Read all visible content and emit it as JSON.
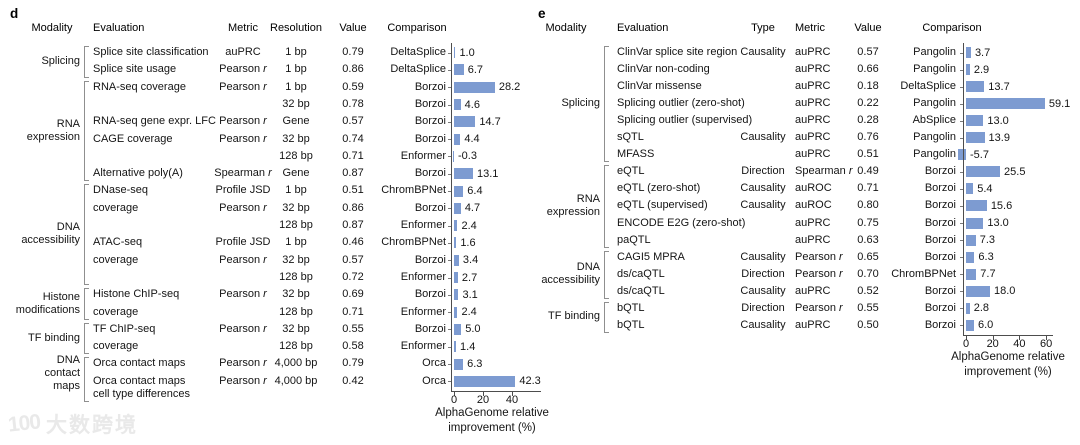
{
  "colors": {
    "bar": "#7d9bd1",
    "axis": "#4d4d4d",
    "bracket": "#8f8f8f",
    "text": "#141414",
    "watermark": "#e9e9e9"
  },
  "watermark": {
    "logo_text": "100",
    "text": "大数跨境"
  },
  "panels": [
    {
      "label": "d",
      "headers": [
        "Modality",
        "Evaluation",
        "Metric",
        "Resolution",
        "Value",
        "Comparison"
      ],
      "groups": [
        {
          "label_lines": [
            "Splicing"
          ],
          "start": 0,
          "end": 1
        },
        {
          "label_lines": [
            "RNA",
            "expression"
          ],
          "start": 2,
          "end": 7
        },
        {
          "label_lines": [
            "DNA",
            "accessibility"
          ],
          "start": 8,
          "end": 13
        },
        {
          "label_lines": [
            "Histone",
            "modifications"
          ],
          "start": 14,
          "end": 15
        },
        {
          "label_lines": [
            "TF binding"
          ],
          "start": 16,
          "end": 17
        },
        {
          "label_lines": [
            "DNA",
            "contact",
            "maps"
          ],
          "start": 18,
          "end": 19,
          "extend": 13
        }
      ],
      "rows": [
        {
          "evaluation": "Splice site classification",
          "metric": "auPRC",
          "resolution": "1 bp",
          "value": "0.79",
          "comparison": "DeltaSplice",
          "improvement": 1.0
        },
        {
          "evaluation": "Splice site usage",
          "metric": "Pearson r",
          "resolution": "1 bp",
          "value": "0.86",
          "comparison": "DeltaSplice",
          "improvement": 6.7
        },
        {
          "evaluation": "RNA-seq coverage",
          "metric": "Pearson r",
          "resolution": "1 bp",
          "value": "0.59",
          "comparison": "Borzoi",
          "improvement": 28.2
        },
        {
          "evaluation": "",
          "metric": "",
          "resolution": "32 bp",
          "value": "0.78",
          "comparison": "Borzoi",
          "improvement": 4.6
        },
        {
          "evaluation": "RNA-seq gene expr. LFC",
          "metric": "Pearson r",
          "resolution": "Gene",
          "value": "0.57",
          "comparison": "Borzoi",
          "improvement": 14.7
        },
        {
          "evaluation": "CAGE coverage",
          "metric": "Pearson r",
          "resolution": "32 bp",
          "value": "0.74",
          "comparison": "Borzoi",
          "improvement": 4.4
        },
        {
          "evaluation": "",
          "metric": "",
          "resolution": "128 bp",
          "value": "0.71",
          "comparison": "Enformer",
          "improvement": -0.3
        },
        {
          "evaluation": "Alternative poly(A)",
          "metric": "Spearman r",
          "resolution": "Gene",
          "value": "0.87",
          "comparison": "Borzoi",
          "improvement": 13.1
        },
        {
          "evaluation": "DNase-seq",
          "metric": "Profile JSD",
          "resolution": "1 bp",
          "value": "0.51",
          "comparison": "ChromBPNet",
          "improvement": 6.4
        },
        {
          "evaluation": "coverage",
          "metric": "Pearson r",
          "resolution": "32 bp",
          "value": "0.86",
          "comparison": "Borzoi",
          "improvement": 4.7
        },
        {
          "evaluation": "",
          "metric": "",
          "resolution": "128 bp",
          "value": "0.87",
          "comparison": "Enformer",
          "improvement": 2.4
        },
        {
          "evaluation": "ATAC-seq",
          "metric": "Profile JSD",
          "resolution": "1 bp",
          "value": "0.46",
          "comparison": "ChromBPNet",
          "improvement": 1.6
        },
        {
          "evaluation": "coverage",
          "metric": "Pearson r",
          "resolution": "32 bp",
          "value": "0.57",
          "comparison": "Borzoi",
          "improvement": 3.4
        },
        {
          "evaluation": "",
          "metric": "",
          "resolution": "128 bp",
          "value": "0.72",
          "comparison": "Enformer",
          "improvement": 2.7
        },
        {
          "evaluation": "Histone ChIP-seq",
          "metric": "Pearson r",
          "resolution": "32 bp",
          "value": "0.69",
          "comparison": "Borzoi",
          "improvement": 3.1
        },
        {
          "evaluation": "coverage",
          "metric": "",
          "resolution": "128 bp",
          "value": "0.71",
          "comparison": "Enformer",
          "improvement": 2.4
        },
        {
          "evaluation": "TF ChIP-seq",
          "metric": "Pearson r",
          "resolution": "32 bp",
          "value": "0.55",
          "comparison": "Borzoi",
          "improvement": 5.0
        },
        {
          "evaluation": "coverage",
          "metric": "",
          "resolution": "128 bp",
          "value": "0.58",
          "comparison": "Enformer",
          "improvement": 1.4
        },
        {
          "evaluation": "Orca contact maps",
          "metric": "Pearson r",
          "resolution": "4,000 bp",
          "value": "0.79",
          "comparison": "Orca",
          "improvement": 6.3
        },
        {
          "evaluation": "Orca contact maps",
          "evaluation2": "cell type differences",
          "metric": "Pearson r",
          "resolution": "4,000 bp",
          "value": "0.42",
          "comparison": "Orca",
          "improvement": 42.3
        }
      ],
      "axis": {
        "ticks": [
          0,
          20,
          40
        ],
        "label_lines": [
          "AlphaGenome relative",
          "improvement (%)"
        ]
      }
    },
    {
      "label": "e",
      "headers": [
        "Modality",
        "Evaluation",
        "Type",
        "Metric",
        "Value",
        "Comparison"
      ],
      "groups": [
        {
          "label_lines": [
            "Splicing"
          ],
          "start": 0,
          "end": 6
        },
        {
          "label_lines": [
            "RNA",
            "expression"
          ],
          "start": 7,
          "end": 11
        },
        {
          "label_lines": [
            "DNA",
            "accessibility"
          ],
          "start": 12,
          "end": 14
        },
        {
          "label_lines": [
            "TF binding"
          ],
          "start": 15,
          "end": 16
        }
      ],
      "rows": [
        {
          "evaluation": "ClinVar splice site region",
          "type": "Causality",
          "metric": "auPRC",
          "value": "0.57",
          "comparison": "Pangolin",
          "improvement": 3.7
        },
        {
          "evaluation": "ClinVar non-coding",
          "type": "",
          "metric": "auPRC",
          "value": "0.66",
          "comparison": "Pangolin",
          "improvement": 2.9
        },
        {
          "evaluation": "ClinVar missense",
          "type": "",
          "metric": "auPRC",
          "value": "0.18",
          "comparison": "DeltaSplice",
          "improvement": 13.7
        },
        {
          "evaluation": "Splicing outlier (zero-shot)",
          "type": "",
          "metric": "auPRC",
          "value": "0.22",
          "comparison": "Pangolin",
          "improvement": 59.1
        },
        {
          "evaluation": "Splicing outlier (supervised)",
          "type": "",
          "metric": "auPRC",
          "value": "0.28",
          "comparison": "AbSplice",
          "improvement": 13.0
        },
        {
          "evaluation": "sQTL",
          "type": "Causality",
          "metric": "auPRC",
          "value": "0.76",
          "comparison": "Pangolin",
          "improvement": 13.9
        },
        {
          "evaluation": "MFASS",
          "type": "",
          "metric": "auPRC",
          "value": "0.51",
          "comparison": "Pangolin",
          "improvement": -5.7
        },
        {
          "evaluation": "eQTL",
          "type": "Direction",
          "metric": "Spearman r",
          "value": "0.49",
          "comparison": "Borzoi",
          "improvement": 25.5
        },
        {
          "evaluation": "eQTL (zero-shot)",
          "type": "Causality",
          "metric": "auROC",
          "value": "0.71",
          "comparison": "Borzoi",
          "improvement": 5.4
        },
        {
          "evaluation": "eQTL (supervised)",
          "type": "Causality",
          "metric": "auROC",
          "value": "0.80",
          "comparison": "Borzoi",
          "improvement": 15.6
        },
        {
          "evaluation": "ENCODE E2G (zero-shot)",
          "type": "",
          "metric": "auPRC",
          "value": "0.75",
          "comparison": "Borzoi",
          "improvement": 13.0
        },
        {
          "evaluation": "paQTL",
          "type": "",
          "metric": "auPRC",
          "value": "0.63",
          "comparison": "Borzoi",
          "improvement": 7.3
        },
        {
          "evaluation": "CAGI5 MPRA",
          "type": "Causality",
          "metric": "Pearson r",
          "value": "0.65",
          "comparison": "Borzoi",
          "improvement": 6.3
        },
        {
          "evaluation": "ds/caQTL",
          "type": "Direction",
          "metric": "Pearson r",
          "value": "0.70",
          "comparison": "ChromBPNet",
          "improvement": 7.7
        },
        {
          "evaluation": "ds/caQTL",
          "type": "Causality",
          "metric": "auPRC",
          "value": "0.52",
          "comparison": "Borzoi",
          "improvement": 18.0
        },
        {
          "evaluation": "bQTL",
          "type": "Direction",
          "metric": "Pearson r",
          "value": "0.55",
          "comparison": "Borzoi",
          "improvement": 2.8
        },
        {
          "evaluation": "bQTL",
          "type": "Causality",
          "metric": "auPRC",
          "value": "0.50",
          "comparison": "Borzoi",
          "improvement": 6.0
        }
      ],
      "axis": {
        "ticks": [
          0,
          20,
          40,
          60
        ],
        "label_lines": [
          "AlphaGenome relative",
          "improvement (%)"
        ]
      }
    }
  ],
  "chart_data": [
    {
      "type": "bar",
      "orientation": "horizontal",
      "panel": "d",
      "row_labels": [
        "DeltaSplice",
        "DeltaSplice",
        "Borzoi",
        "Borzoi",
        "Borzoi",
        "Borzoi",
        "Enformer",
        "Borzoi",
        "ChromBPNet",
        "Borzoi",
        "Enformer",
        "ChromBPNet",
        "Borzoi",
        "Enformer",
        "Borzoi",
        "Enformer",
        "Borzoi",
        "Enformer",
        "Orca",
        "Orca"
      ],
      "values": [
        1.0,
        6.7,
        28.2,
        4.6,
        14.7,
        4.4,
        -0.3,
        13.1,
        6.4,
        4.7,
        2.4,
        1.6,
        3.4,
        2.7,
        3.1,
        2.4,
        5.0,
        1.4,
        6.3,
        42.3
      ],
      "xlabel": "AlphaGenome relative improvement (%)",
      "xticks": [
        0,
        20,
        40
      ],
      "xlim": [
        -2,
        47
      ],
      "grid": false,
      "legend": false
    },
    {
      "type": "bar",
      "orientation": "horizontal",
      "panel": "e",
      "row_labels": [
        "Pangolin",
        "Pangolin",
        "DeltaSplice",
        "Pangolin",
        "AbSplice",
        "Pangolin",
        "Pangolin",
        "Borzoi",
        "Borzoi",
        "Borzoi",
        "Borzoi",
        "Borzoi",
        "Borzoi",
        "ChromBPNet",
        "Borzoi",
        "Borzoi",
        "Borzoi"
      ],
      "values": [
        3.7,
        2.9,
        13.7,
        59.1,
        13.0,
        13.9,
        -5.7,
        25.5,
        5.4,
        15.6,
        13.0,
        7.3,
        6.3,
        7.7,
        18.0,
        2.8,
        6.0
      ],
      "xlabel": "AlphaGenome relative improvement (%)",
      "xticks": [
        0,
        20,
        40,
        60
      ],
      "xlim": [
        -7,
        65
      ],
      "grid": false,
      "legend": false
    }
  ]
}
